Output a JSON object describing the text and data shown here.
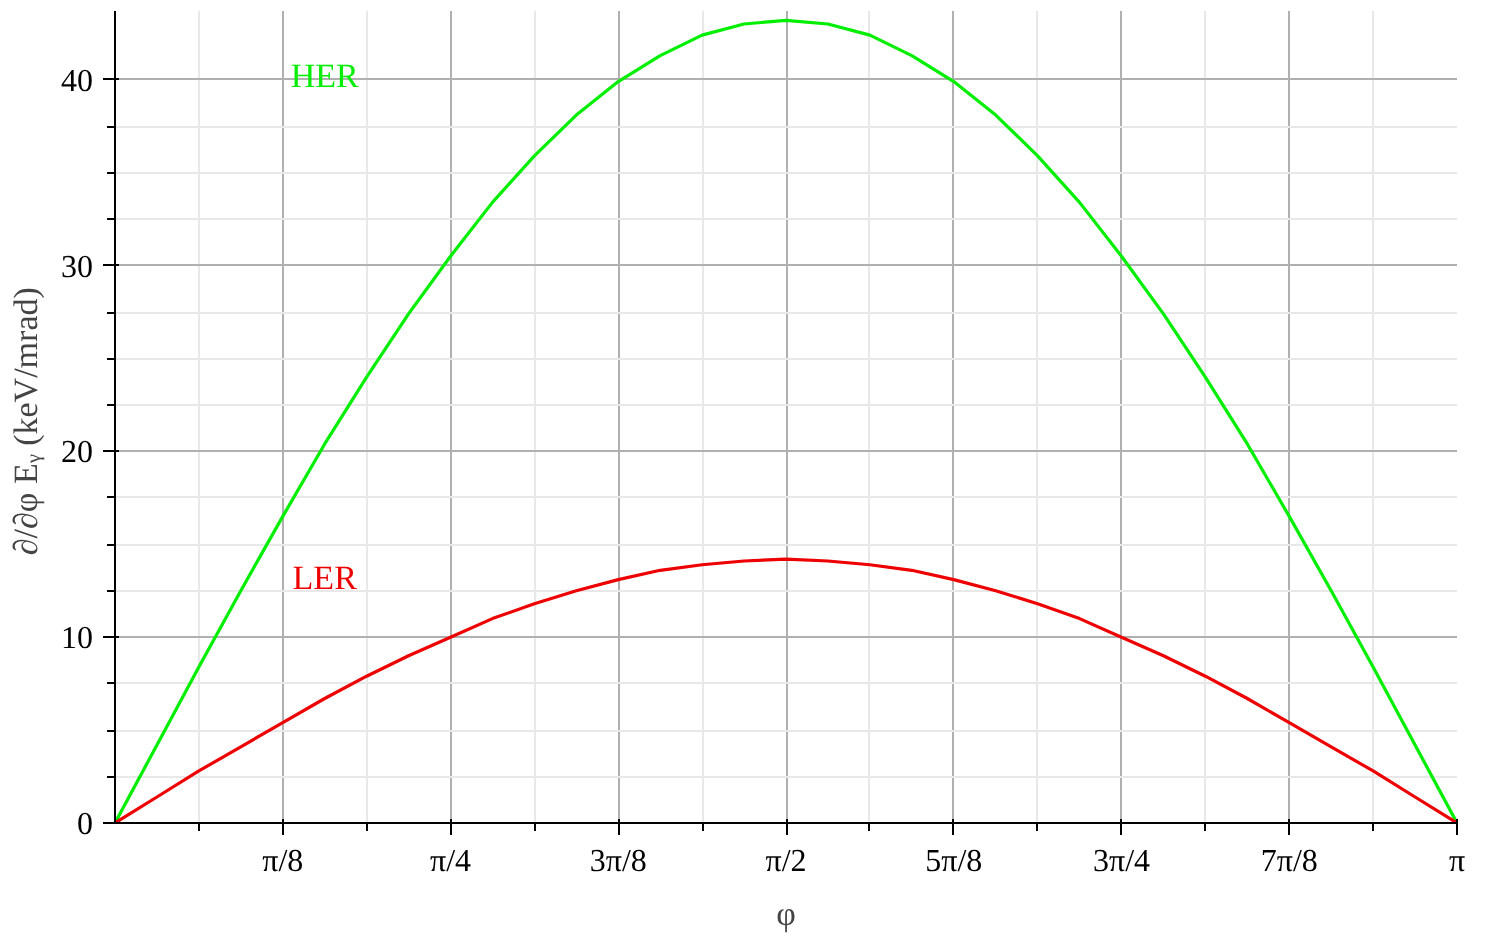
{
  "chart_data": {
    "type": "line",
    "xlabel": "φ",
    "ylabel": "∂/∂φ Eᵧ  (keV/mrad)",
    "x": [
      0,
      0.0982,
      0.1963,
      0.2945,
      0.3927,
      0.4909,
      0.589,
      0.6872,
      0.7854,
      0.8836,
      0.9817,
      1.0799,
      1.1781,
      1.2763,
      1.3744,
      1.4726,
      1.5708,
      1.669,
      1.7671,
      1.8653,
      1.9635,
      2.0617,
      2.1598,
      2.258,
      2.3562,
      2.4544,
      2.5525,
      2.6507,
      2.7489,
      2.8471,
      2.9452,
      3.0434,
      3.1416
    ],
    "series": [
      {
        "name": "HER",
        "color": "#00ee00",
        "values": [
          0,
          4.2,
          8.4,
          12.5,
          16.5,
          20.4,
          24.0,
          27.4,
          30.5,
          33.4,
          35.9,
          38.1,
          39.9,
          41.3,
          42.4,
          43.0,
          43.2,
          43.0,
          42.4,
          41.3,
          39.9,
          38.1,
          35.9,
          33.4,
          30.5,
          27.4,
          24.0,
          20.4,
          16.5,
          12.5,
          8.4,
          4.2,
          0
        ]
      },
      {
        "name": "LER",
        "color": "#ee0000",
        "values": [
          0,
          1.4,
          2.8,
          4.1,
          5.4,
          6.7,
          7.9,
          9.0,
          10.0,
          11.0,
          11.8,
          12.5,
          13.1,
          13.6,
          13.9,
          14.1,
          14.2,
          14.1,
          13.9,
          13.6,
          13.1,
          12.5,
          11.8,
          11.0,
          10.0,
          9.0,
          7.9,
          6.7,
          5.4,
          4.1,
          2.8,
          1.4,
          0
        ]
      }
    ],
    "xlim": [
      0,
      3.1416
    ],
    "ylim": [
      0,
      43.7
    ],
    "xticks": [
      {
        "value": 0.3927,
        "label": "π/8"
      },
      {
        "value": 0.7854,
        "label": "π/4"
      },
      {
        "value": 1.1781,
        "label": "3π/8"
      },
      {
        "value": 1.5708,
        "label": "π/2"
      },
      {
        "value": 1.9635,
        "label": "5π/8"
      },
      {
        "value": 2.3562,
        "label": "3π/4"
      },
      {
        "value": 2.7489,
        "label": "7π/8"
      },
      {
        "value": 3.1416,
        "label": "π"
      }
    ],
    "yticks": [
      0,
      10,
      20,
      30,
      40
    ],
    "grid": true,
    "legend": false,
    "line_style": "solid",
    "marker": "none"
  }
}
